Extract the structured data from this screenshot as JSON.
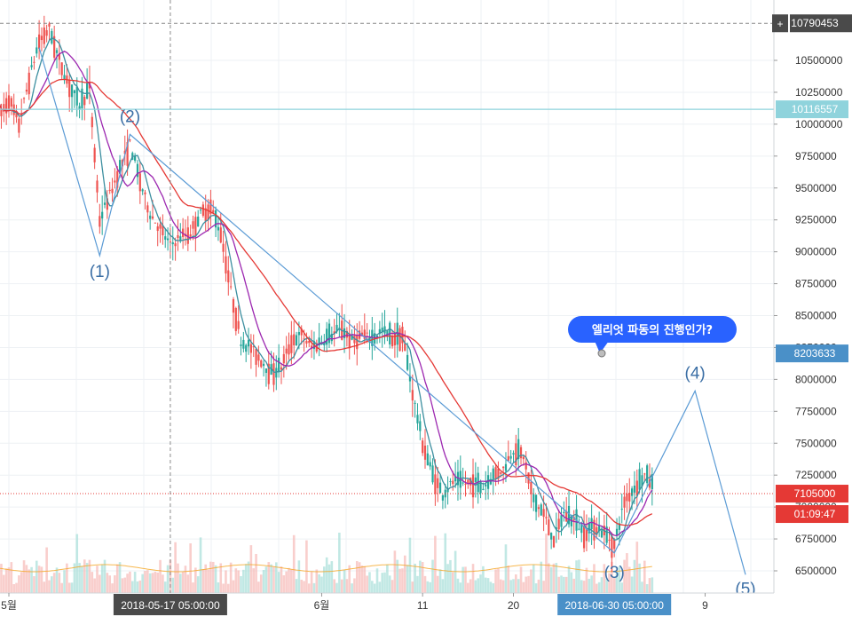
{
  "colors": {
    "up": "#26a69a",
    "down": "#ef5350",
    "ma_fast": "#3d8fa0",
    "ma_mid": "#9c27b0",
    "ma_slow": "#e53935",
    "wave_line": "#5b9bd5",
    "wave_text": "#3a6ea5",
    "resistance": "#8fd3dc",
    "current_price": "#e53935",
    "bubble": "#2962ff",
    "label_dark": "#4a4a4a",
    "label_blue": "#4a90c8",
    "volume_orange": "#f5a623"
  },
  "chart_data": {
    "type": "candlestick",
    "y_range": [
      6400000,
      10850000
    ],
    "x_range": [
      "2018-04-30",
      "2018-07-14"
    ],
    "y_ticks": [
      "10500000",
      "10250000",
      "10000000",
      "9750000",
      "9500000",
      "9250000",
      "9000000",
      "8750000",
      "8500000",
      "8250000",
      "8000000",
      "7750000",
      "7500000",
      "7250000",
      "7000000",
      "6750000",
      "6500000"
    ],
    "x_ticks": [
      {
        "label": "5월",
        "date": "2018-05-01"
      },
      {
        "label": "6월",
        "date": "2018-06-01"
      },
      {
        "label": "11",
        "date": "2018-06-11"
      },
      {
        "label": "20",
        "date": "2018-06-20"
      },
      {
        "label": "9",
        "date": "2018-07-09"
      }
    ],
    "price_labels": [
      {
        "value": "10790453",
        "price": 10790453,
        "style": "dark",
        "prefix": "+"
      },
      {
        "value": "10116557",
        "price": 10116557,
        "style": "cyan"
      },
      {
        "value": "8203633",
        "price": 8203633,
        "style": "blue"
      },
      {
        "value": "7105000",
        "price": 7105000,
        "style": "red"
      },
      {
        "value": "01:09:47",
        "price": 6945000,
        "style": "red"
      }
    ],
    "crosshair": {
      "date": "2018-05-17 05:00:00",
      "price": 10790453
    },
    "x_labels": [
      {
        "value": "2018-05-17 05:00:00",
        "date": "2018-05-17",
        "style": "dark"
      },
      {
        "value": "2018-06-30 05:00:00",
        "date": "2018-06-30",
        "style": "blue"
      }
    ],
    "resistance": 10116557,
    "current_price": 7105000,
    "elliott_wave": [
      {
        "label": "",
        "date": "2018-05-04",
        "price": 10600000
      },
      {
        "label": "(1)",
        "date": "2018-05-10",
        "price": 8970000
      },
      {
        "label": "(2)",
        "date": "2018-05-13",
        "price": 9920000
      },
      {
        "label": "(3)",
        "date": "2018-06-30",
        "price": 6640000
      },
      {
        "label": "(4)",
        "date": "2018-07-08",
        "price": 7910000
      },
      {
        "label": "(5)",
        "date": "2018-07-13",
        "price": 6470000
      }
    ],
    "price_path": [
      [
        "2018-04-30",
        10050000
      ],
      [
        "2018-05-01",
        10200000
      ],
      [
        "2018-05-02",
        10000000
      ],
      [
        "2018-05-03",
        10350000
      ],
      [
        "2018-05-04",
        10650000
      ],
      [
        "2018-05-05",
        10750000
      ],
      [
        "2018-05-06",
        10500000
      ],
      [
        "2018-05-07",
        10300000
      ],
      [
        "2018-05-08",
        10150000
      ],
      [
        "2018-05-09",
        10280000
      ],
      [
        "2018-05-10",
        9250000
      ],
      [
        "2018-05-11",
        9450000
      ],
      [
        "2018-05-12",
        9650000
      ],
      [
        "2018-05-13",
        9850000
      ],
      [
        "2018-05-14",
        9550000
      ],
      [
        "2018-05-15",
        9300000
      ],
      [
        "2018-05-16",
        9180000
      ],
      [
        "2018-05-17",
        9050000
      ],
      [
        "2018-05-18",
        9120000
      ],
      [
        "2018-05-19",
        9150000
      ],
      [
        "2018-05-20",
        9300000
      ],
      [
        "2018-05-21",
        9350000
      ],
      [
        "2018-05-22",
        9150000
      ],
      [
        "2018-05-23",
        8700000
      ],
      [
        "2018-05-24",
        8300000
      ],
      [
        "2018-05-25",
        8250000
      ],
      [
        "2018-05-26",
        8150000
      ],
      [
        "2018-05-27",
        8050000
      ],
      [
        "2018-05-28",
        8100000
      ],
      [
        "2018-05-29",
        8300000
      ],
      [
        "2018-05-30",
        8350000
      ],
      [
        "2018-05-31",
        8250000
      ],
      [
        "2018-06-01",
        8300000
      ],
      [
        "2018-06-02",
        8350000
      ],
      [
        "2018-06-03",
        8400000
      ],
      [
        "2018-06-04",
        8300000
      ],
      [
        "2018-06-05",
        8350000
      ],
      [
        "2018-06-06",
        8320000
      ],
      [
        "2018-06-07",
        8380000
      ],
      [
        "2018-06-08",
        8320000
      ],
      [
        "2018-06-09",
        8350000
      ],
      [
        "2018-06-10",
        7900000
      ],
      [
        "2018-06-11",
        7500000
      ],
      [
        "2018-06-12",
        7250000
      ],
      [
        "2018-06-13",
        7100000
      ],
      [
        "2018-06-14",
        7200000
      ],
      [
        "2018-06-15",
        7180000
      ],
      [
        "2018-06-16",
        7200000
      ],
      [
        "2018-06-17",
        7150000
      ],
      [
        "2018-06-18",
        7250000
      ],
      [
        "2018-06-19",
        7300000
      ],
      [
        "2018-06-20",
        7450000
      ],
      [
        "2018-06-21",
        7400000
      ],
      [
        "2018-06-22",
        7050000
      ],
      [
        "2018-06-23",
        6950000
      ],
      [
        "2018-06-24",
        6750000
      ],
      [
        "2018-06-25",
        6950000
      ],
      [
        "2018-06-26",
        6900000
      ],
      [
        "2018-06-27",
        6800000
      ],
      [
        "2018-06-28",
        6850000
      ],
      [
        "2018-06-29",
        6800000
      ],
      [
        "2018-06-30",
        6700000
      ],
      [
        "2018-07-01",
        7050000
      ],
      [
        "2018-07-02",
        7150000
      ],
      [
        "2018-07-03",
        7250000
      ],
      [
        "2018-07-04",
        7150000
      ]
    ]
  },
  "annotation_bubble": {
    "text": "엘리엇 파동의 진행인가?"
  }
}
